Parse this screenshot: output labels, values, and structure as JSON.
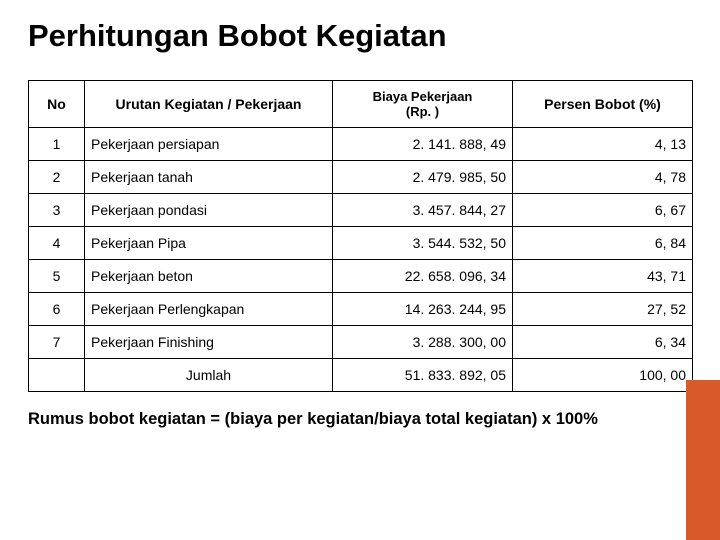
{
  "title": "Perhitungan Bobot Kegiatan",
  "headers": {
    "no": "No",
    "activity": "Urutan Kegiatan / Pekerjaan",
    "biaya_line1": "Biaya Pekerjaan",
    "biaya_line2": "(Rp. )",
    "percent": "Persen Bobot (%)"
  },
  "rows": [
    {
      "no": "1",
      "activity": "Pekerjaan persiapan",
      "biaya": "2. 141. 888, 49",
      "pct": "4, 13"
    },
    {
      "no": "2",
      "activity": "Pekerjaan tanah",
      "biaya": "2. 479. 985, 50",
      "pct": "4, 78"
    },
    {
      "no": "3",
      "activity": "Pekerjaan pondasi",
      "biaya": "3. 457. 844, 27",
      "pct": "6, 67"
    },
    {
      "no": "4",
      "activity": "Pekerjaan Pipa",
      "biaya": "3. 544. 532, 50",
      "pct": "6, 84"
    },
    {
      "no": "5",
      "activity": "Pekerjaan beton",
      "biaya": "22. 658. 096, 34",
      "pct": "43, 71"
    },
    {
      "no": "6",
      "activity": "Pekerjaan Perlengkapan",
      "biaya": "14. 263. 244, 95",
      "pct": "27, 52"
    },
    {
      "no": "7",
      "activity": "Pekerjaan Finishing",
      "biaya": "3. 288. 300, 00",
      "pct": "6, 34"
    }
  ],
  "total": {
    "label": "Jumlah",
    "biaya": "51. 833. 892, 05",
    "pct": "100, 00"
  },
  "formula_bold": "Rumus bobot kegiatan = ",
  "formula_rest": "(biaya per kegiatan/biaya total kegiatan) x 100%",
  "colors": {
    "accent": "#d85a2a",
    "border": "#000000",
    "bg": "#ffffff"
  }
}
